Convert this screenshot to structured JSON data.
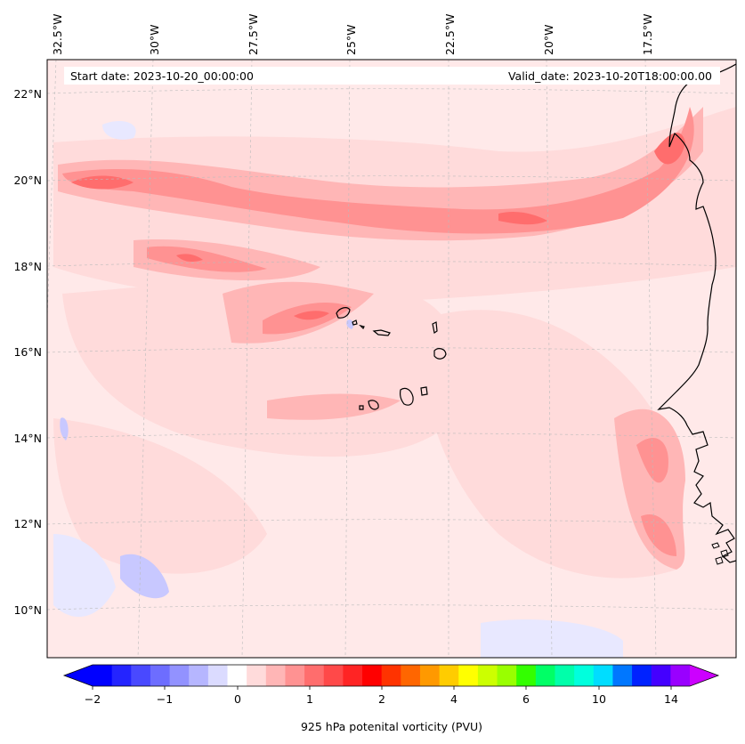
{
  "info": {
    "start_date": "Start date: 2023-10-20_00:00:00",
    "valid_date": "Valid_date: 2023-10-20T18:00:00.00"
  },
  "axes": {
    "lon_labels": [
      "32.5°W",
      "30°W",
      "27.5°W",
      "25°W",
      "22.5°W",
      "20°W",
      "17.5°W"
    ],
    "lat_labels": [
      "22°N",
      "20°N",
      "18°N",
      "16°N",
      "14°N",
      "12°N",
      "10°N"
    ]
  },
  "colorbar": {
    "label": "925 hPa potenital vorticity (PVU)",
    "tick_labels": [
      "−2",
      "−1",
      "0",
      "1",
      "2",
      "4",
      "6",
      "10",
      "14"
    ],
    "colors": [
      "#0000ff",
      "#2424ff",
      "#4949ff",
      "#6d6dff",
      "#9292ff",
      "#b6b6ff",
      "#dbdbff",
      "#ffffff",
      "#ffdbdb",
      "#ffb6b6",
      "#ff9292",
      "#ff6d6d",
      "#ff4949",
      "#ff2424",
      "#ff0000",
      "#ff3300",
      "#ff6600",
      "#ff9900",
      "#ffcc00",
      "#ffff00",
      "#ccff00",
      "#99ff00",
      "#33ff00",
      "#00ff66",
      "#00ffaa",
      "#00ffdd",
      "#00ddff",
      "#0077ff",
      "#0022ff",
      "#4400ff",
      "#9900ff"
    ],
    "under_color": "#0000ff",
    "over_color": "#cc00ff"
  },
  "map": {
    "background_color": "#ffe9e9",
    "shade_light": "#ffdbdb",
    "shade_mid": "#ffb6b6",
    "shade_strong": "#ff9292",
    "shade_core": "#ff6d6d",
    "shade_blue": "#e8e8ff",
    "shade_blue_mid": "#c8c8ff",
    "coastline": "Africa-west-coast",
    "islands": "Cabo-Verde"
  }
}
